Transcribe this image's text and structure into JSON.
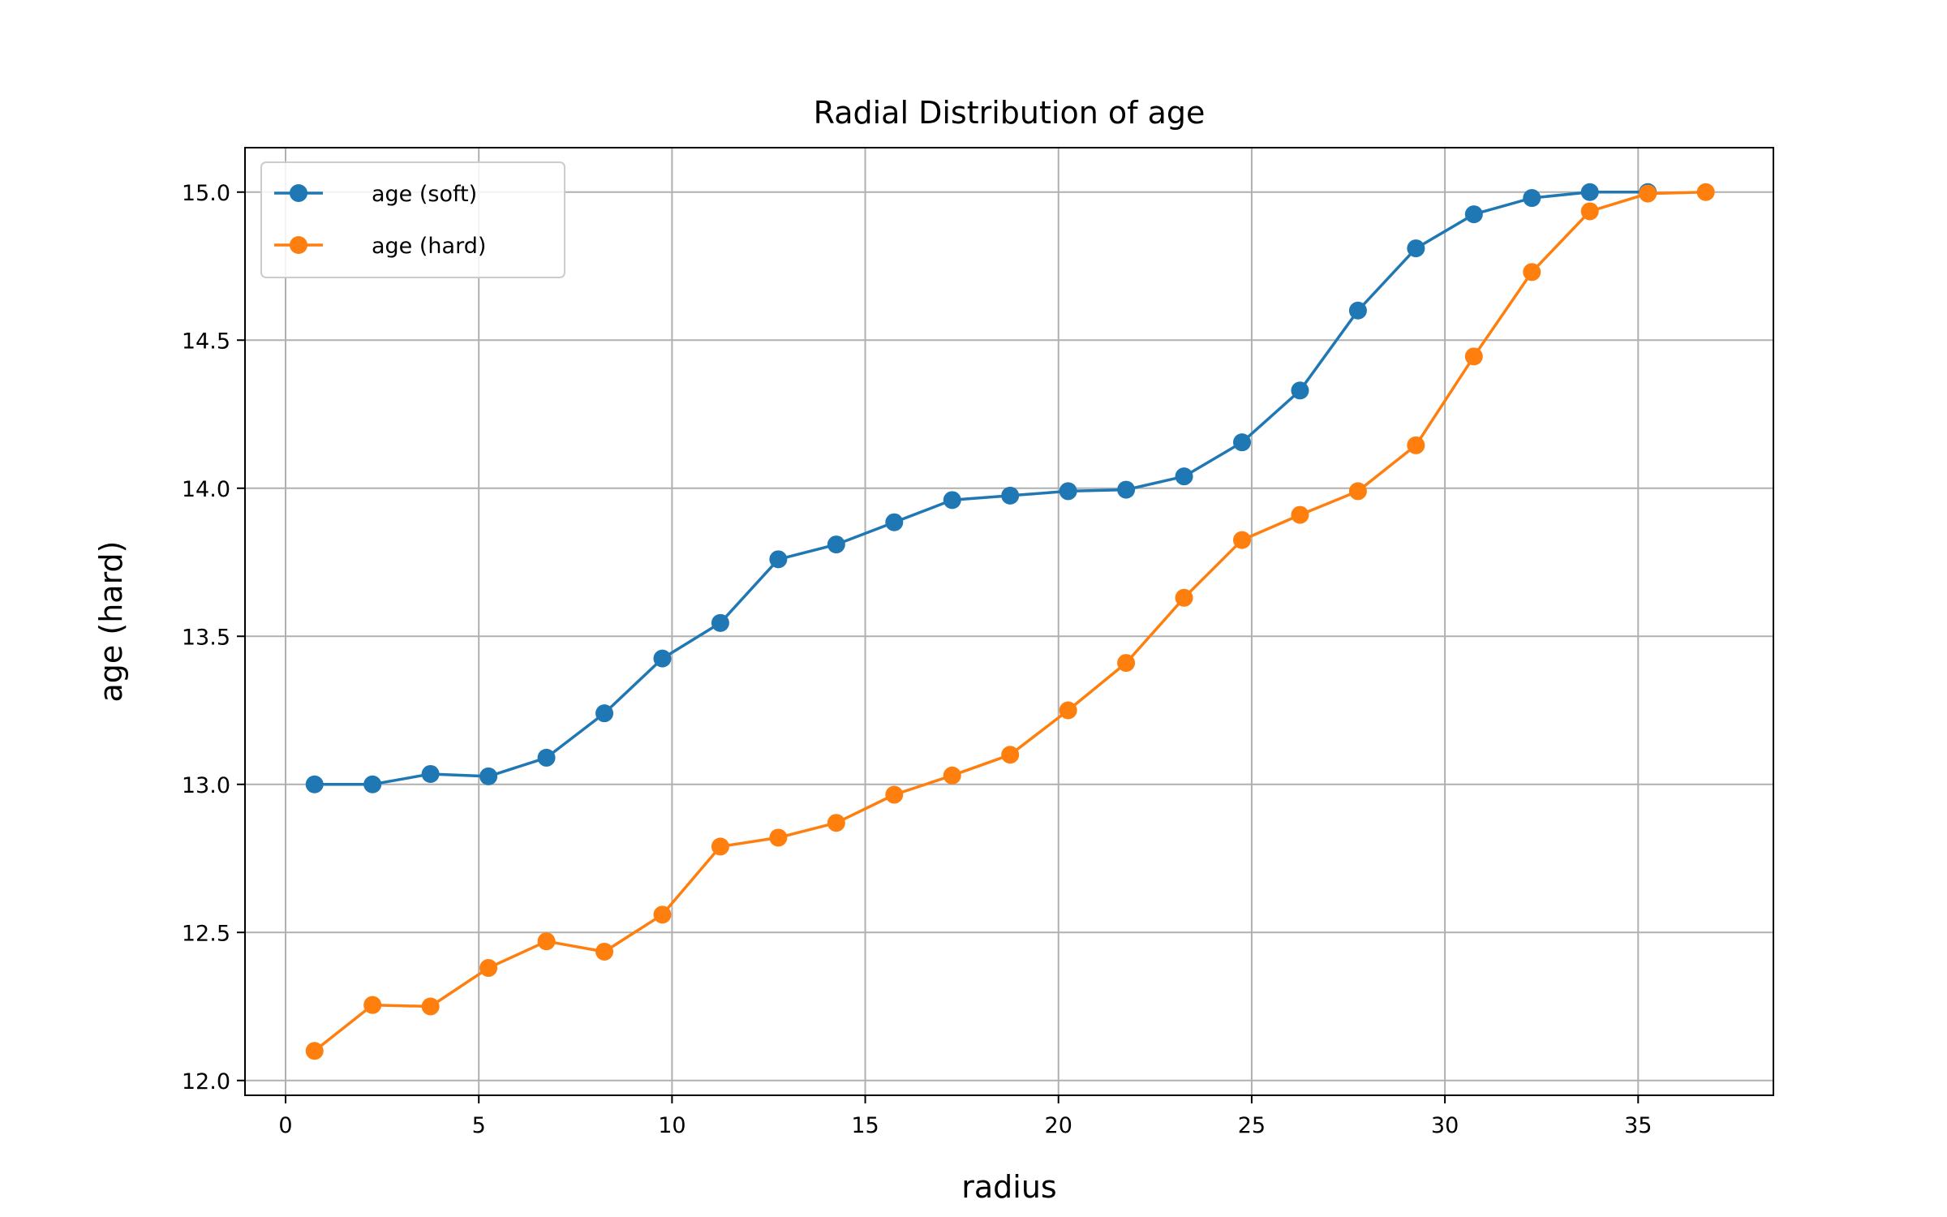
{
  "chart_data": {
    "type": "line",
    "title": "Radial Distribution of age",
    "xlabel": "radius",
    "ylabel": "age (hard)",
    "xlim": [
      -1.05,
      38.5
    ],
    "ylim": [
      11.95,
      15.15
    ],
    "x_ticks": [
      0,
      5,
      10,
      15,
      20,
      25,
      30,
      35
    ],
    "y_ticks": [
      12.0,
      12.5,
      13.0,
      13.5,
      14.0,
      14.5,
      15.0
    ],
    "x_tick_labels": [
      "0",
      "5",
      "10",
      "15",
      "20",
      "25",
      "30",
      "35"
    ],
    "y_tick_labels": [
      "12.0",
      "12.5",
      "13.0",
      "13.5",
      "14.0",
      "14.5",
      "15.0"
    ],
    "grid": true,
    "legend_position": "top-left",
    "series": [
      {
        "name": "age (soft)",
        "color": "#1f77b4",
        "marker": "circle",
        "x": [
          0.75,
          2.25,
          3.75,
          5.25,
          6.75,
          8.25,
          9.75,
          11.25,
          12.75,
          14.25,
          15.75,
          17.25,
          18.75,
          20.25,
          21.75,
          23.25,
          24.75,
          26.25,
          27.75,
          29.25,
          30.75,
          32.25,
          33.75,
          35.25
        ],
        "y": [
          13.0,
          13.0,
          13.035,
          13.027,
          13.09,
          13.24,
          13.425,
          13.545,
          13.76,
          13.81,
          13.885,
          13.96,
          13.975,
          13.99,
          13.995,
          14.04,
          14.155,
          14.33,
          14.6,
          14.81,
          14.925,
          14.98,
          15.0,
          15.0
        ]
      },
      {
        "name": "age (hard)",
        "color": "#ff7f0e",
        "marker": "circle",
        "x": [
          0.75,
          2.25,
          3.75,
          5.25,
          6.75,
          8.25,
          9.75,
          11.25,
          12.75,
          14.25,
          15.75,
          17.25,
          18.75,
          20.25,
          21.75,
          23.25,
          24.75,
          26.25,
          27.75,
          29.25,
          30.75,
          32.25,
          33.75,
          35.25,
          36.75
        ],
        "y": [
          12.1,
          12.255,
          12.25,
          12.38,
          12.47,
          12.435,
          12.56,
          12.79,
          12.82,
          12.87,
          12.965,
          13.03,
          13.1,
          13.25,
          13.41,
          13.63,
          13.825,
          13.91,
          13.99,
          14.145,
          14.445,
          14.73,
          14.935,
          14.995,
          15.0
        ]
      }
    ]
  }
}
